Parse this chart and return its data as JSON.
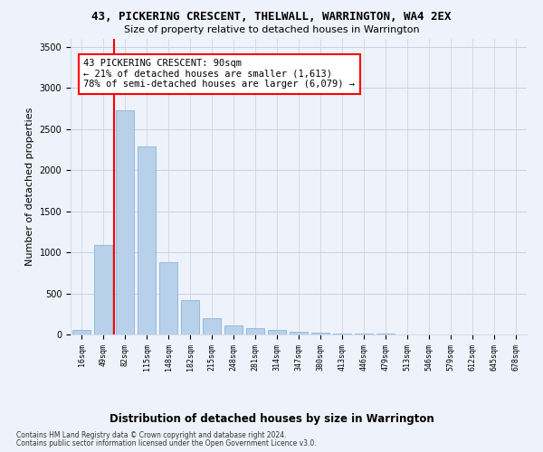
{
  "title": "43, PICKERING CRESCENT, THELWALL, WARRINGTON, WA4 2EX",
  "subtitle": "Size of property relative to detached houses in Warrington",
  "xlabel": "Distribution of detached houses by size in Warrington",
  "ylabel": "Number of detached properties",
  "footnote1": "Contains HM Land Registry data © Crown copyright and database right 2024.",
  "footnote2": "Contains public sector information licensed under the Open Government Licence v3.0.",
  "categories": [
    "16sqm",
    "49sqm",
    "82sqm",
    "115sqm",
    "148sqm",
    "182sqm",
    "215sqm",
    "248sqm",
    "281sqm",
    "314sqm",
    "347sqm",
    "380sqm",
    "413sqm",
    "446sqm",
    "479sqm",
    "513sqm",
    "546sqm",
    "579sqm",
    "612sqm",
    "645sqm",
    "678sqm"
  ],
  "values": [
    50,
    1090,
    2730,
    2290,
    880,
    415,
    200,
    110,
    75,
    55,
    35,
    20,
    15,
    10,
    8,
    5,
    5,
    3,
    2,
    2,
    1
  ],
  "bar_color": "#b8d0ea",
  "bar_edge_color": "#7aaed4",
  "red_line_bar_index": 2,
  "annotation_text": "43 PICKERING CRESCENT: 90sqm\n← 21% of detached houses are smaller (1,613)\n78% of semi-detached houses are larger (6,079) →",
  "annotation_box_color": "white",
  "annotation_border_color": "red",
  "ylim": [
    0,
    3600
  ],
  "yticks": [
    0,
    500,
    1000,
    1500,
    2000,
    2500,
    3000,
    3500
  ],
  "background_color": "#eef2fa",
  "grid_color": "#c8d0e0",
  "title_fontsize": 9,
  "subtitle_fontsize": 8,
  "ylabel_fontsize": 8,
  "xlabel_fontsize": 8.5,
  "tick_fontsize": 6,
  "annot_fontsize": 7.5,
  "footnote_fontsize": 5.5
}
